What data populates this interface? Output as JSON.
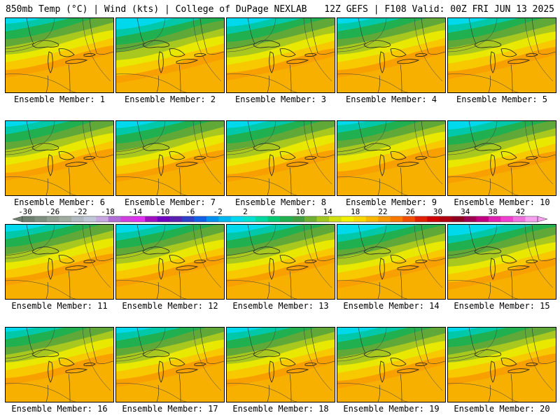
{
  "header": {
    "left": "850mb Temp (°C) | Wind (kts) | College of DuPage NEXLAB",
    "right": "12Z GEFS | F108 Valid: 00Z FRI JUN 13 2025"
  },
  "colorbar": {
    "tick_labels": [
      "-30",
      "-26",
      "-22",
      "-18",
      "-14",
      "-10",
      "-6",
      "-2",
      "2",
      "6",
      "10",
      "14",
      "18",
      "22",
      "26",
      "30",
      "34",
      "38",
      "42"
    ],
    "colors": [
      "#6f7f6f",
      "#7f8f7f",
      "#909f90",
      "#a0aca0",
      "#b0b8c0",
      "#c0c8d8",
      "#c8a8e0",
      "#b070d8",
      "#d040e0",
      "#e030f0",
      "#a010c0",
      "#7000c0",
      "#5a20b0",
      "#3040c8",
      "#1060e8",
      "#0090f0",
      "#00b8f0",
      "#00d8f0",
      "#00e0d0",
      "#00d8a0",
      "#00c870",
      "#20b050",
      "#40a040",
      "#70b030",
      "#a0c820",
      "#d0e010",
      "#f0f000",
      "#f8d800",
      "#f8b800",
      "#f89800",
      "#f87800",
      "#f05000",
      "#e02000",
      "#d00000",
      "#b00010",
      "#900020",
      "#a00050",
      "#c00080",
      "#e020b0",
      "#f040d0",
      "#f070e0",
      "#f8a0f0"
    ]
  },
  "members": [
    {
      "label": "Ensemble Member: 1",
      "warmth": 0.45
    },
    {
      "label": "Ensemble Member: 2",
      "warmth": 0.65
    },
    {
      "label": "Ensemble Member: 3",
      "warmth": 0.55
    },
    {
      "label": "Ensemble Member: 4",
      "warmth": 0.45
    },
    {
      "label": "Ensemble Member: 5",
      "warmth": 0.5
    },
    {
      "label": "Ensemble Member: 6",
      "warmth": 0.45
    },
    {
      "label": "Ensemble Member: 7",
      "warmth": 0.5
    },
    {
      "label": "Ensemble Member: 8",
      "warmth": 0.5
    },
    {
      "label": "Ensemble Member: 9",
      "warmth": 0.4
    },
    {
      "label": "Ensemble Member: 10",
      "warmth": 0.55
    },
    {
      "label": "Ensemble Member: 11",
      "warmth": 0.5
    },
    {
      "label": "Ensemble Member: 12",
      "warmth": 0.55
    },
    {
      "label": "Ensemble Member: 13",
      "warmth": 0.55
    },
    {
      "label": "Ensemble Member: 14",
      "warmth": 0.6
    },
    {
      "label": "Ensemble Member: 15",
      "warmth": 0.65
    },
    {
      "label": "Ensemble Member: 16",
      "warmth": 0.4
    },
    {
      "label": "Ensemble Member: 17",
      "warmth": 0.45
    },
    {
      "label": "Ensemble Member: 18",
      "warmth": 0.45
    },
    {
      "label": "Ensemble Member: 19",
      "warmth": 0.5
    },
    {
      "label": "Ensemble Member: 20",
      "warmth": 0.4
    }
  ]
}
